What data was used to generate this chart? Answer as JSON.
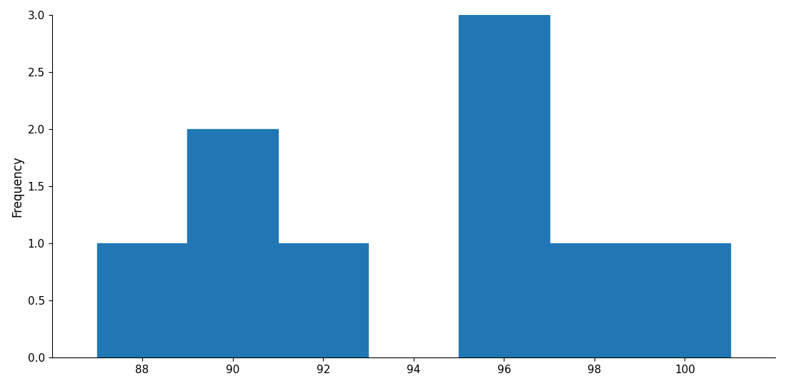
{
  "bin_edges": [
    87,
    89,
    91,
    93,
    95,
    97,
    99,
    101
  ],
  "counts": [
    1,
    2,
    1,
    0,
    3,
    1,
    1
  ],
  "bar_color": "#2077b4",
  "ylabel": "Frequency",
  "xlabel": "",
  "ylim": [
    0.0,
    3.0
  ],
  "xlim": [
    86,
    102
  ],
  "yticks": [
    0.0,
    0.5,
    1.0,
    1.5,
    2.0,
    2.5,
    3.0
  ],
  "xticks": [
    88,
    90,
    92,
    94,
    96,
    98,
    100
  ],
  "background_color": "#ffffff",
  "figsize": [
    11.0,
    5.41
  ],
  "dpi": 100
}
